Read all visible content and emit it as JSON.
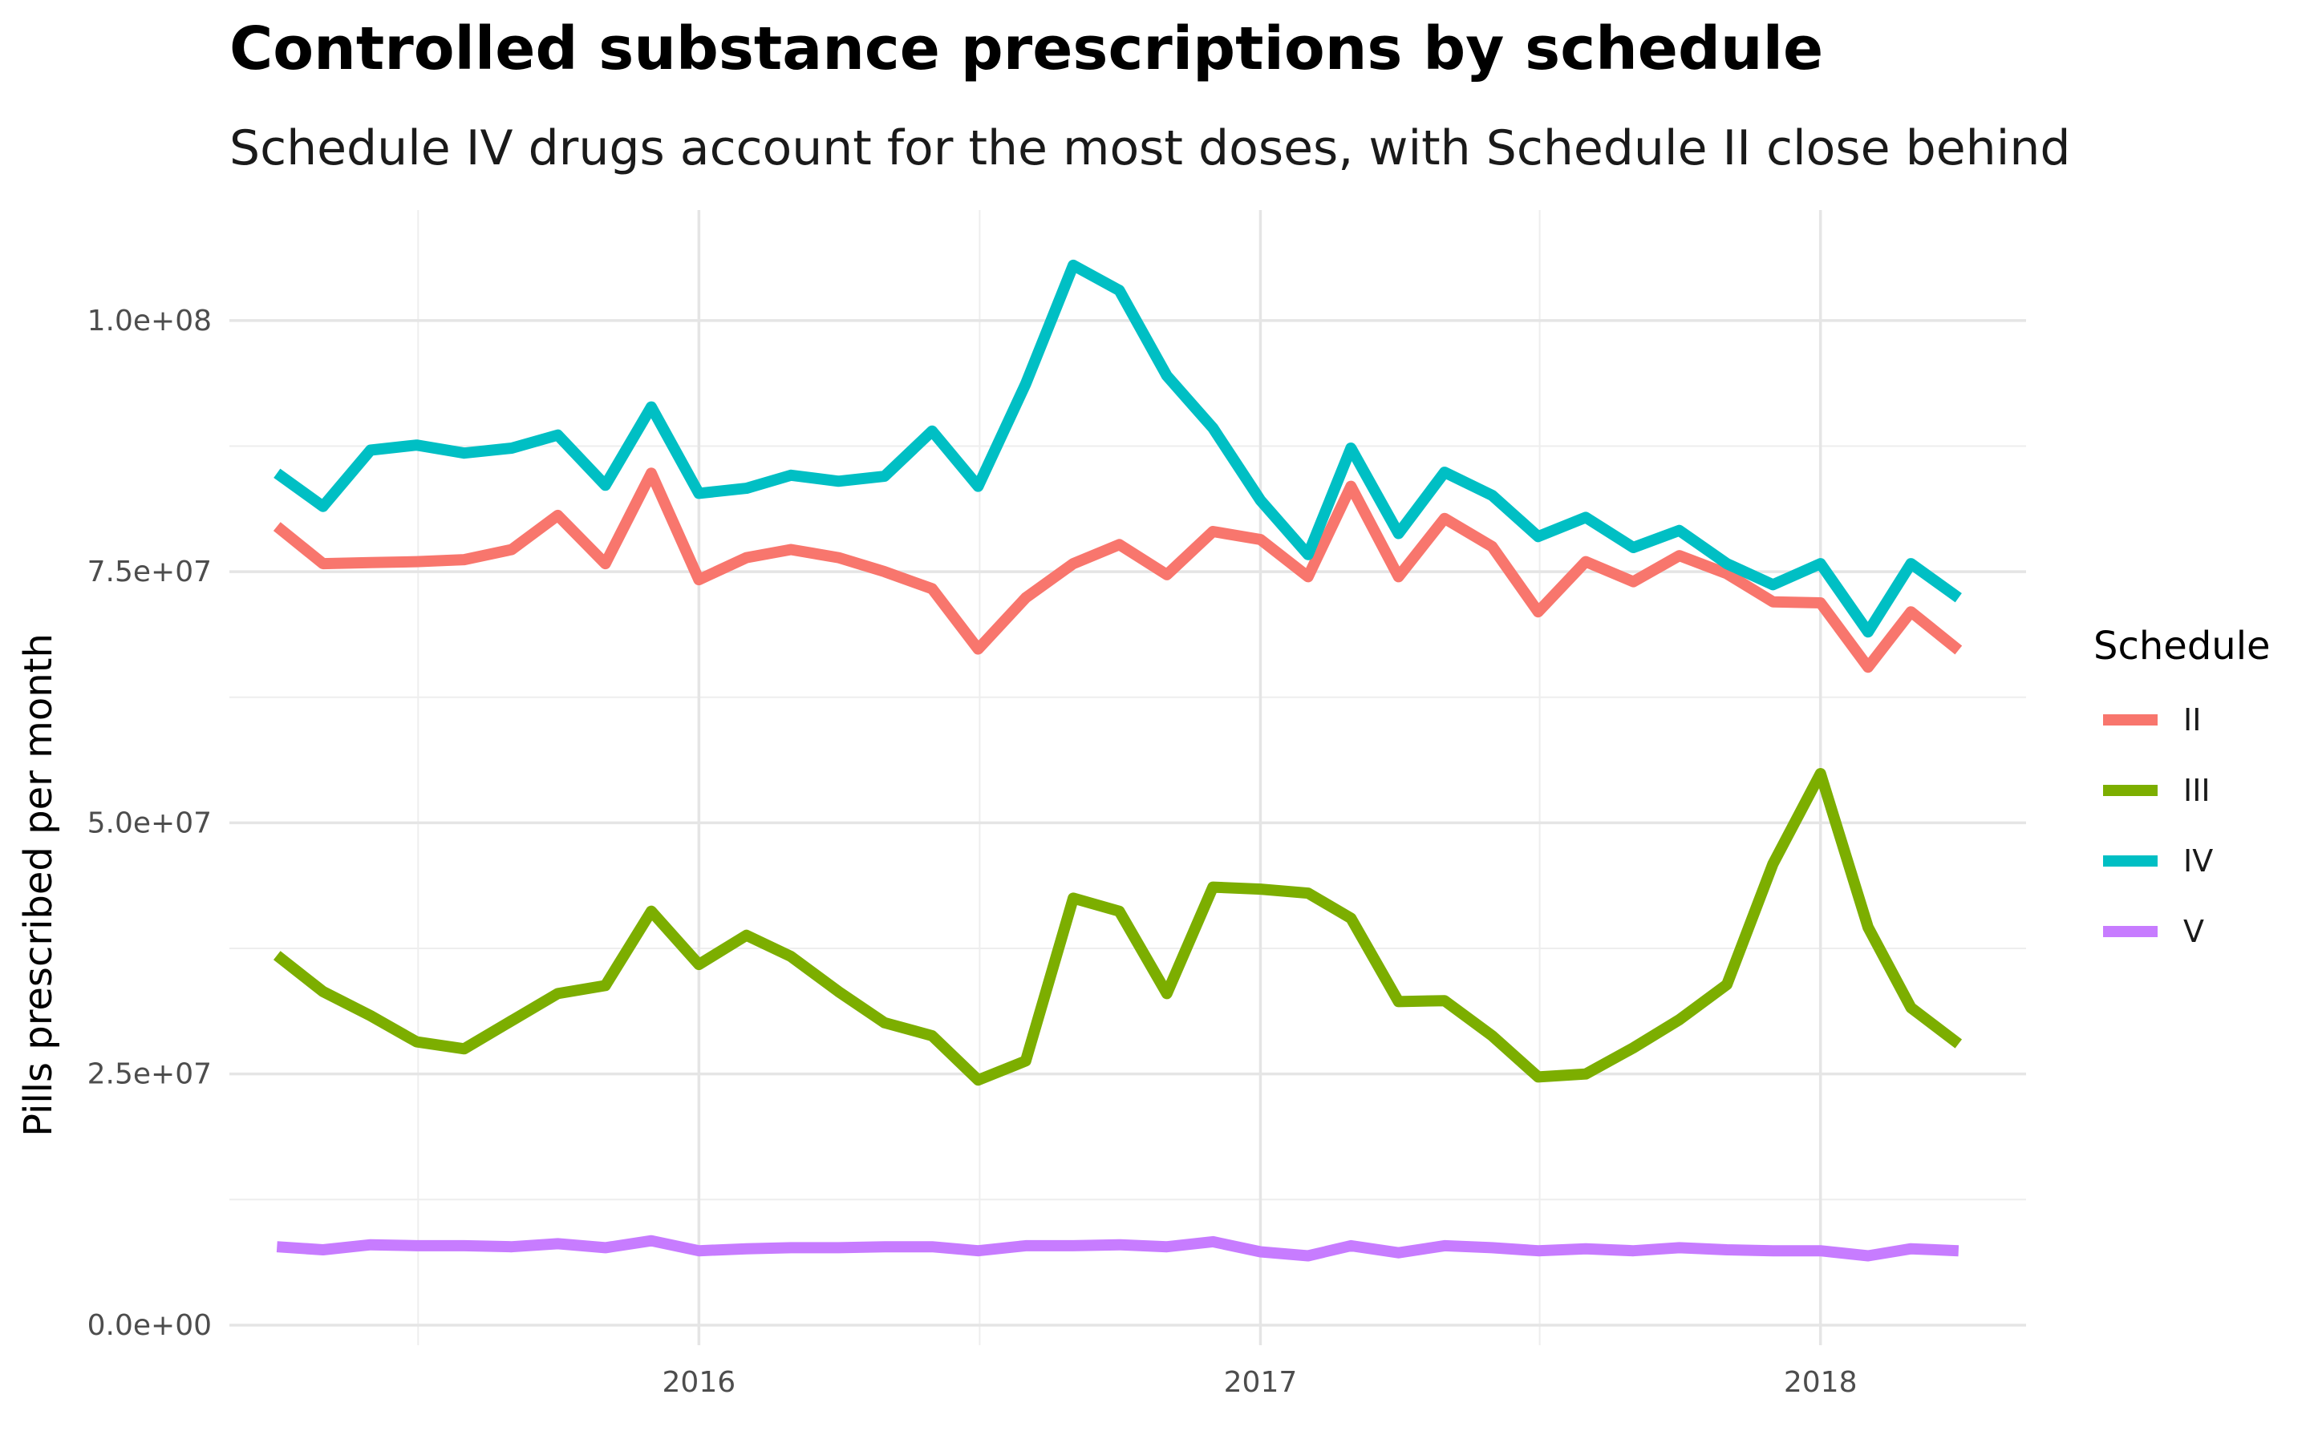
{
  "chart_data": {
    "type": "line",
    "title": "Controlled substance prescriptions by schedule",
    "subtitle": "Schedule IV drugs account for the most doses, with Schedule II close behind",
    "xlabel": "",
    "ylabel": "Pills prescribed per month",
    "legend_title": "Schedule",
    "legend_position": "right",
    "grid": true,
    "xlim": [
      "2015-03-01",
      "2018-05-15"
    ],
    "ylim": [
      -2000000,
      111000000
    ],
    "x_ticks": [
      "2016-01-01",
      "2017-01-01",
      "2018-01-01"
    ],
    "x_tick_labels": [
      "2016",
      "2017",
      "2018"
    ],
    "y_ticks": [
      0,
      25000000,
      50000000,
      75000000,
      100000000
    ],
    "y_tick_labels": [
      "0.0e+00",
      "2.5e+07",
      "5.0e+07",
      "7.5e+07",
      "1.0e+08"
    ],
    "x": [
      "2015-04-01",
      "2015-05-01",
      "2015-06-01",
      "2015-07-01",
      "2015-08-01",
      "2015-09-01",
      "2015-10-01",
      "2015-11-01",
      "2015-12-01",
      "2016-01-01",
      "2016-02-01",
      "2016-03-01",
      "2016-04-01",
      "2016-05-01",
      "2016-06-01",
      "2016-07-01",
      "2016-08-01",
      "2016-09-01",
      "2016-10-01",
      "2016-11-01",
      "2016-12-01",
      "2017-01-01",
      "2017-02-01",
      "2017-03-01",
      "2017-04-01",
      "2017-05-01",
      "2017-06-01",
      "2017-07-01",
      "2017-08-01",
      "2017-09-01",
      "2017-10-01",
      "2017-11-01",
      "2017-12-01",
      "2018-01-01",
      "2018-02-01",
      "2018-03-01",
      "2018-04-01"
    ],
    "series": [
      {
        "name": "II",
        "color": "#F8766D",
        "values": [
          79500000,
          75800000,
          75900000,
          76000000,
          76200000,
          77200000,
          80600000,
          75800000,
          84800000,
          74200000,
          76400000,
          77200000,
          76400000,
          75000000,
          73300000,
          67300000,
          72400000,
          75800000,
          77700000,
          74700000,
          79000000,
          78200000,
          74500000,
          83500000,
          74500000,
          80300000,
          77500000,
          71000000,
          76000000,
          74000000,
          76600000,
          74800000,
          72000000,
          71900000,
          65500000,
          71000000,
          67200000
        ]
      },
      {
        "name": "III",
        "color": "#7CAE00",
        "values": [
          36800000,
          33200000,
          30800000,
          28200000,
          27500000,
          30300000,
          33000000,
          33800000,
          41200000,
          35900000,
          38800000,
          36700000,
          33200000,
          30100000,
          28800000,
          24400000,
          26300000,
          42500000,
          41200000,
          33000000,
          43600000,
          43400000,
          43000000,
          40500000,
          32200000,
          32300000,
          28800000,
          24700000,
          25000000,
          27600000,
          30400000,
          33900000,
          45900000,
          54900000,
          39600000,
          31600000,
          28000000
        ]
      },
      {
        "name": "IV",
        "color": "#00BFC4",
        "values": [
          84800000,
          81500000,
          87100000,
          87600000,
          86800000,
          87300000,
          88600000,
          83600000,
          91400000,
          82800000,
          83300000,
          84600000,
          84000000,
          84500000,
          89000000,
          83500000,
          93700000,
          105500000,
          103000000,
          94500000,
          89300000,
          82100000,
          76700000,
          87300000,
          78800000,
          84900000,
          82600000,
          78500000,
          80400000,
          77400000,
          79100000,
          75800000,
          73700000,
          75800000,
          69000000,
          75800000,
          72400000
        ]
      },
      {
        "name": "V",
        "color": "#C77CFF",
        "values": [
          7800000,
          7500000,
          8000000,
          7900000,
          7900000,
          7800000,
          8100000,
          7700000,
          8400000,
          7400000,
          7600000,
          7700000,
          7700000,
          7800000,
          7800000,
          7400000,
          7900000,
          7900000,
          8000000,
          7800000,
          8300000,
          7300000,
          6900000,
          7900000,
          7200000,
          7900000,
          7700000,
          7400000,
          7600000,
          7400000,
          7700000,
          7500000,
          7400000,
          7400000,
          6900000,
          7600000,
          7400000
        ]
      }
    ]
  }
}
